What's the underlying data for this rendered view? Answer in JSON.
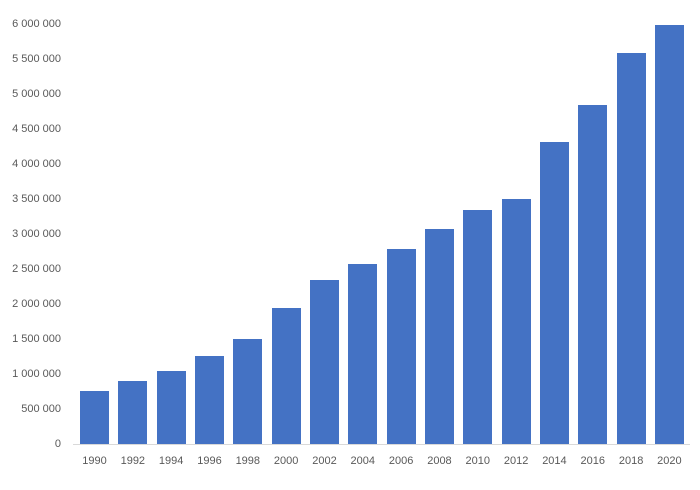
{
  "chart_data": {
    "type": "bar",
    "title": "",
    "xlabel": "",
    "ylabel": "",
    "categories": [
      "1990",
      "1992",
      "1994",
      "1996",
      "1998",
      "2000",
      "2002",
      "2004",
      "2006",
      "2008",
      "2010",
      "2012",
      "2014",
      "2016",
      "2018",
      "2020"
    ],
    "values": [
      755000,
      905000,
      1050000,
      1260000,
      1495000,
      1950000,
      2340000,
      2565000,
      2780000,
      3065000,
      3340000,
      3500000,
      4320000,
      4845000,
      5580000,
      5990000
    ],
    "ylim": [
      0,
      6000000
    ],
    "ytick_step": 500000,
    "ytick_labels": [
      "0",
      "500 000",
      "1 000 000",
      "1 500 000",
      "2 000 000",
      "2 500 000",
      "3 000 000",
      "3 500 000",
      "4 000 000",
      "4 500 000",
      "5 000 000",
      "5 500 000",
      "6 000 000"
    ],
    "grid": false,
    "legend": false,
    "bar_color": "#4472C4",
    "axis_label_color": "#595959",
    "axis_line_color": "#D9D9D9"
  }
}
